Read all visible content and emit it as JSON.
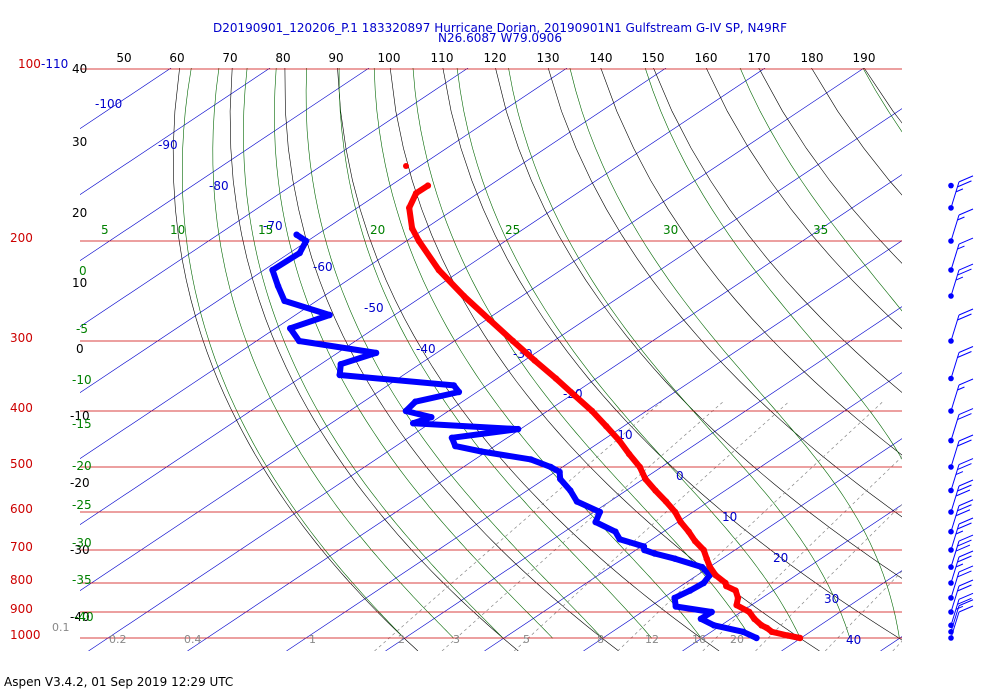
{
  "title": {
    "line1": "D20190901_120206_P.1 183320897 Hurricane Dorian, 20190901N1 Gulfstream G-IV SP, N49RF",
    "line2": "N26.6087 W79.0906"
  },
  "footer": "Aspen V3.4.2, 01 Sep 2019  12:29 UTC",
  "colors": {
    "temperature": "#ff0000",
    "dewpoint": "#0000ff",
    "isobar": "#cc0000",
    "isotherm": "#0000cc",
    "dry_adiabat": "#000000",
    "moist_adiabat": "#006600",
    "mixing_ratio": "#888888",
    "wind": "#0000ff"
  },
  "chart_data": {
    "type": "skew-t log-p sounding",
    "pressure_axis": {
      "labels": [
        "100-110",
        "200",
        "300",
        "400",
        "500",
        "600",
        "700",
        "800",
        "900",
        "1000"
      ],
      "values_hPa": [
        100,
        200,
        300,
        400,
        500,
        600,
        700,
        800,
        900,
        1000
      ]
    },
    "top_scale_labels": [
      "50",
      "60",
      "70",
      "80",
      "90",
      "100",
      "110",
      "120",
      "130",
      "140",
      "150",
      "160",
      "170",
      "180",
      "190"
    ],
    "temp_axis_labels": [
      "40",
      "30",
      "20",
      "10",
      "0",
      "-10",
      "-20",
      "-30",
      "-40"
    ],
    "isotherm_labels": [
      "-100",
      "-90",
      "-80",
      "-70",
      "-60",
      "-50",
      "-40",
      "-30",
      "-20",
      "-10",
      "0",
      "10",
      "20",
      "30",
      "40"
    ],
    "moist_labels_top": [
      "5",
      "10",
      "15",
      "20",
      "25",
      "30",
      "35"
    ],
    "moist_labels_left": [
      "0",
      "-5",
      "-10",
      "-15",
      "-20",
      "-25",
      "-30",
      "-35",
      "-40"
    ],
    "mixing_ratio_labels": [
      "0.1",
      "0.2",
      "0.4",
      "1",
      "2",
      "3",
      "5",
      "8",
      "12",
      "16",
      "20"
    ],
    "temperature_profile": [
      {
        "p": 1000,
        "t": 27
      },
      {
        "p": 990,
        "t": 25.5
      },
      {
        "p": 975,
        "t": 23.5
      },
      {
        "p": 960,
        "t": 22.6
      },
      {
        "p": 950,
        "t": 21.8
      },
      {
        "p": 925,
        "t": 20.4
      },
      {
        "p": 900,
        "t": 19.2
      },
      {
        "p": 875,
        "t": 17.2
      },
      {
        "p": 850,
        "t": 16.6
      },
      {
        "p": 825,
        "t": 15.6
      },
      {
        "p": 810,
        "t": 14.2
      },
      {
        "p": 800,
        "t": 13.8
      },
      {
        "p": 775,
        "t": 12.0
      },
      {
        "p": 750,
        "t": 10.6
      },
      {
        "p": 725,
        "t": 9.4
      },
      {
        "p": 700,
        "t": 8.2
      },
      {
        "p": 675,
        "t": 6.4
      },
      {
        "p": 650,
        "t": 4.8
      },
      {
        "p": 625,
        "t": 3.0
      },
      {
        "p": 600,
        "t": 1.4
      },
      {
        "p": 575,
        "t": -0.6
      },
      {
        "p": 550,
        "t": -2.8
      },
      {
        "p": 525,
        "t": -5.0
      },
      {
        "p": 500,
        "t": -6.8
      },
      {
        "p": 475,
        "t": -9.2
      },
      {
        "p": 450,
        "t": -11.6
      },
      {
        "p": 425,
        "t": -14.4
      },
      {
        "p": 400,
        "t": -17.4
      },
      {
        "p": 375,
        "t": -20.8
      },
      {
        "p": 350,
        "t": -24.4
      },
      {
        "p": 325,
        "t": -28.4
      },
      {
        "p": 300,
        "t": -32.6
      },
      {
        "p": 275,
        "t": -37.2
      },
      {
        "p": 250,
        "t": -42.2
      },
      {
        "p": 225,
        "t": -47.4
      },
      {
        "p": 200,
        "t": -52.4
      },
      {
        "p": 190,
        "t": -54.4
      },
      {
        "p": 175,
        "t": -56.8
      },
      {
        "p": 165,
        "t": -57.6
      },
      {
        "p": 160,
        "t": -57.2
      }
    ],
    "dewpoint_profile": [
      {
        "p": 1000,
        "td": 22.6
      },
      {
        "p": 975,
        "td": 20.6
      },
      {
        "p": 950,
        "td": 17.0
      },
      {
        "p": 925,
        "td": 15.0
      },
      {
        "p": 900,
        "td": 15.4
      },
      {
        "p": 880,
        "td": 11.2
      },
      {
        "p": 850,
        "td": 10.2
      },
      {
        "p": 825,
        "td": 11.0
      },
      {
        "p": 800,
        "td": 11.6
      },
      {
        "p": 775,
        "td": 11.4
      },
      {
        "p": 750,
        "td": 9.8
      },
      {
        "p": 725,
        "td": 6.2
      },
      {
        "p": 710,
        "td": 3.6
      },
      {
        "p": 700,
        "td": 2.2
      },
      {
        "p": 690,
        "td": 1.8
      },
      {
        "p": 670,
        "td": -1.4
      },
      {
        "p": 650,
        "td": -2.6
      },
      {
        "p": 625,
        "td": -5.6
      },
      {
        "p": 600,
        "td": -6.2
      },
      {
        "p": 575,
        "td": -9.6
      },
      {
        "p": 550,
        "td": -11.4
      },
      {
        "p": 525,
        "td": -13.6
      },
      {
        "p": 510,
        "td": -14.4
      },
      {
        "p": 500,
        "td": -15.8
      },
      {
        "p": 485,
        "td": -18.6
      },
      {
        "p": 470,
        "td": -24.4
      },
      {
        "p": 460,
        "td": -27.6
      },
      {
        "p": 445,
        "td": -28.8
      },
      {
        "p": 430,
        "td": -23.0
      },
      {
        "p": 420,
        "td": -34.2
      },
      {
        "p": 410,
        "td": -33.0
      },
      {
        "p": 400,
        "td": -36.2
      },
      {
        "p": 385,
        "td": -36.2
      },
      {
        "p": 370,
        "td": -32.8
      },
      {
        "p": 360,
        "td": -34.0
      },
      {
        "p": 345,
        "td": -46.6
      },
      {
        "p": 330,
        "td": -47.6
      },
      {
        "p": 315,
        "td": -45.2
      },
      {
        "p": 300,
        "td": -54.2
      },
      {
        "p": 285,
        "td": -56.4
      },
      {
        "p": 270,
        "td": -53.8
      },
      {
        "p": 255,
        "td": -59.8
      },
      {
        "p": 240,
        "td": -62.0
      },
      {
        "p": 225,
        "td": -64.2
      },
      {
        "p": 210,
        "td": -63.2
      },
      {
        "p": 200,
        "td": -63.8
      },
      {
        "p": 195,
        "td": -65.4
      }
    ],
    "wind_barbs": [
      {
        "p": 1000,
        "speed_kt": 10
      },
      {
        "p": 975,
        "speed_kt": 10
      },
      {
        "p": 950,
        "speed_kt": 25
      },
      {
        "p": 900,
        "speed_kt": 20
      },
      {
        "p": 850,
        "speed_kt": 20
      },
      {
        "p": 800,
        "speed_kt": 25
      },
      {
        "p": 750,
        "speed_kt": 30
      },
      {
        "p": 700,
        "speed_kt": 25
      },
      {
        "p": 650,
        "speed_kt": 30
      },
      {
        "p": 600,
        "speed_kt": 30
      },
      {
        "p": 550,
        "speed_kt": 25
      },
      {
        "p": 500,
        "speed_kt": 20
      },
      {
        "p": 450,
        "speed_kt": 20
      },
      {
        "p": 400,
        "speed_kt": 15
      },
      {
        "p": 350,
        "speed_kt": 20
      },
      {
        "p": 300,
        "speed_kt": 20
      },
      {
        "p": 250,
        "speed_kt": 25
      },
      {
        "p": 225,
        "speed_kt": 15
      },
      {
        "p": 200,
        "speed_kt": 15
      },
      {
        "p": 175,
        "speed_kt": 25
      },
      {
        "p": 160,
        "speed_kt": 0
      }
    ]
  }
}
